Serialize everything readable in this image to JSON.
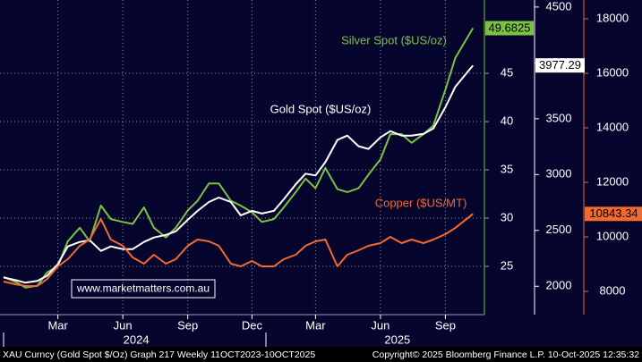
{
  "chart_data": {
    "type": "line",
    "x": [
      "2023-12-15",
      "2024-01-01",
      "2024-01-15",
      "2024-02-01",
      "2024-02-15",
      "2024-03-01",
      "2024-03-15",
      "2024-04-01",
      "2024-04-15",
      "2024-05-01",
      "2024-05-15",
      "2024-06-01",
      "2024-06-15",
      "2024-07-01",
      "2024-07-15",
      "2024-08-01",
      "2024-08-15",
      "2024-09-01",
      "2024-09-15",
      "2024-10-01",
      "2024-10-15",
      "2024-11-01",
      "2024-11-15",
      "2024-12-01",
      "2024-12-15",
      "2025-01-01",
      "2025-01-15",
      "2025-02-01",
      "2025-02-15",
      "2025-03-01",
      "2025-03-15",
      "2025-04-01",
      "2025-04-15",
      "2025-05-01",
      "2025-05-15",
      "2025-06-01",
      "2025-06-15",
      "2025-07-01",
      "2025-07-15",
      "2025-08-01",
      "2025-08-15",
      "2025-09-01",
      "2025-09-15",
      "2025-10-10"
    ],
    "xlim": [
      "2023-12-10",
      "2025-10-25"
    ],
    "xticks": [
      {
        "value": "2024-03-01",
        "label": "Mar"
      },
      {
        "value": "2024-06-01",
        "label": "Jun"
      },
      {
        "value": "2024-09-01",
        "label": "Sep"
      },
      {
        "value": "2024-12-01",
        "label": "Dec"
      },
      {
        "value": "2025-03-01",
        "label": "Mar"
      },
      {
        "value": "2025-06-01",
        "label": "Jun"
      },
      {
        "value": "2025-09-01",
        "label": "Sep"
      }
    ],
    "xyears": [
      {
        "value": "2024-06-20",
        "label": "2024"
      },
      {
        "value": "2025-06-25",
        "label": "2025"
      }
    ],
    "ylim": [
      20,
      52.6
    ],
    "yticks": [
      25,
      30,
      35,
      40,
      45
    ],
    "y2lim": [
      1746,
      4563
    ],
    "y2ticks": [
      2000,
      2500,
      3000,
      3500,
      4000,
      4500
    ],
    "y3lim": [
      7148,
      18689
    ],
    "y3ticks": [
      8000,
      10000,
      12000,
      14000,
      16000,
      18000
    ],
    "grid": true,
    "series": [
      {
        "name": "Silver Spot ($US/oz)",
        "color": "#7cc242",
        "axis": "y",
        "values": [
          23.9,
          23.4,
          22.8,
          23.0,
          24.4,
          25.0,
          27.6,
          29.0,
          27.6,
          31.3,
          29.9,
          29.6,
          29.4,
          31.1,
          29.0,
          28.0,
          29.0,
          30.8,
          31.8,
          33.6,
          33.6,
          31.8,
          31.3,
          30.6,
          29.6,
          29.9,
          31.1,
          32.7,
          34.1,
          33.1,
          35.2,
          33.0,
          32.7,
          33.1,
          34.5,
          36.1,
          38.7,
          38.7,
          37.8,
          38.7,
          39.6,
          43.3,
          46.6,
          49.6825
        ]
      },
      {
        "name": "Gold Spot ($US/oz)",
        "color": "#ffffff",
        "axis": "y2",
        "values": [
          2079,
          2056,
          2032,
          2048,
          2095,
          2198,
          2357,
          2397,
          2413,
          2317,
          2357,
          2333,
          2333,
          2397,
          2437,
          2460,
          2492,
          2595,
          2675,
          2754,
          2794,
          2754,
          2635,
          2675,
          2651,
          2675,
          2778,
          2913,
          3008,
          2992,
          3111,
          3310,
          3349,
          3254,
          3230,
          3333,
          3389,
          3349,
          3349,
          3365,
          3413,
          3603,
          3786,
          3977.29
        ]
      },
      {
        "name": "Copper ($US/MT)",
        "color": "#f26a2e",
        "axis": "y3",
        "values": [
          8361,
          8262,
          8197,
          8197,
          8459,
          8918,
          9180,
          9672,
          9902,
          10656,
          9902,
          9672,
          9246,
          9016,
          9344,
          9016,
          9180,
          9672,
          9902,
          9836,
          9672,
          9016,
          8918,
          9115,
          8918,
          8918,
          9180,
          9344,
          9672,
          9836,
          9902,
          8918,
          9344,
          9508,
          9672,
          9770,
          10000,
          9770,
          9902,
          9770,
          9902,
          10098,
          10328,
          10843.34
        ]
      }
    ],
    "watermark": "www.marketmatters.com.au",
    "footer_left": "XAU Curncy (Gold Spot  $/Oz) Graph 217 Weekly 11OCT2023-10OCT2025",
    "footer_right": "Copyright© 2025 Bloomberg Finance L.P.   10-Oct-2025 12:35:32"
  }
}
